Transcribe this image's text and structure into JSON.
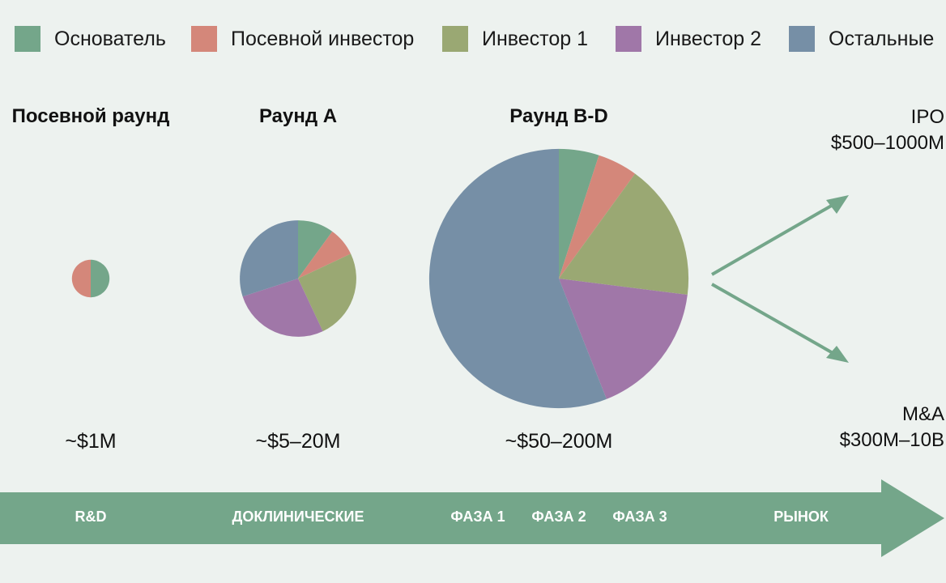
{
  "colors": {
    "founder": "#74a68a",
    "seed_investor": "#d4877a",
    "investor_1": "#9aa873",
    "investor_2": "#a077a8",
    "others": "#768fa6",
    "arrow": "#74a68a",
    "background": "#edf2ef"
  },
  "legend": [
    {
      "key": "founder",
      "label": "Основатель"
    },
    {
      "key": "seed_investor",
      "label": "Посевной инвестор"
    },
    {
      "key": "investor_1",
      "label": "Инвестор 1"
    },
    {
      "key": "investor_2",
      "label": "Инвестор 2"
    },
    {
      "key": "others",
      "label": "Остальные"
    }
  ],
  "chart_data": {
    "type": "pie",
    "series_names": [
      "Основатель",
      "Посевной инвестор",
      "Инвестор 1",
      "Инвестор 2",
      "Остальные"
    ],
    "pies": [
      {
        "title": "Посевной раунд",
        "value_label": "~$1M",
        "relative_size": 1.0,
        "shares": [
          50,
          50,
          0,
          0,
          0
        ]
      },
      {
        "title": "Раунд A",
        "value_label": "~$5–20M",
        "relative_size": 3.1,
        "shares": [
          10,
          8,
          25,
          27,
          30
        ]
      },
      {
        "title": "Раунд B-D",
        "value_label": "~$50–200M",
        "relative_size": 6.9,
        "shares": [
          5,
          5,
          17,
          17,
          56
        ]
      }
    ],
    "exits": [
      {
        "name": "IPO",
        "value": "$500–1000M"
      },
      {
        "name": "M&A",
        "value": "$300M–10B"
      }
    ]
  },
  "phases": [
    "R&D",
    "ДОКЛИНИЧЕСКИЕ",
    "ФАЗА 1",
    "ФАЗА 2",
    "ФАЗА 3",
    "РЫНОК"
  ]
}
